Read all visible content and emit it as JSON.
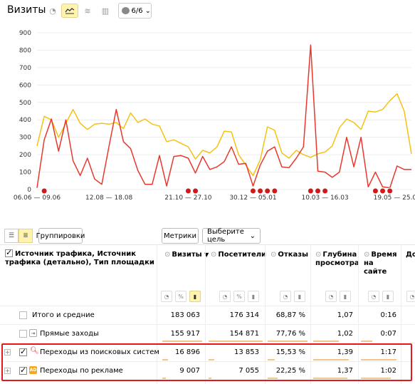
{
  "header": {
    "title": "Визиты",
    "segments_label": "6/6",
    "tools": [
      "pie-chart-icon",
      "line-chart-icon",
      "area-chart-icon",
      "bar-chart-icon"
    ]
  },
  "chart_data": {
    "type": "line",
    "ylim": [
      0,
      900
    ],
    "yticks": [
      "0",
      "100",
      "200",
      "300",
      "400",
      "500",
      "600",
      "700",
      "800",
      "900"
    ],
    "xticks": [
      "06.06 — 09.06",
      "12.08 — 18.08",
      "21.10 — 27.10",
      "30.12 — 05.01",
      "10.03 — 16.03",
      "19.05 — 25.05"
    ],
    "series": [
      {
        "color": "#f5c211",
        "values": [
          250,
          420,
          400,
          300,
          380,
          460,
          380,
          345,
          375,
          380,
          375,
          385,
          350,
          440,
          385,
          405,
          375,
          365,
          275,
          285,
          265,
          245,
          175,
          225,
          210,
          245,
          335,
          330,
          200,
          140,
          80,
          170,
          360,
          340,
          210,
          180,
          225,
          200,
          185,
          205,
          215,
          250,
          355,
          405,
          385,
          345,
          450,
          445,
          460,
          510,
          550,
          450,
          205
        ]
      },
      {
        "color": "#e8382d",
        "values": [
          10,
          285,
          405,
          220,
          400,
          165,
          80,
          180,
          60,
          30,
          250,
          460,
          275,
          235,
          110,
          30,
          30,
          195,
          20,
          190,
          195,
          180,
          95,
          190,
          115,
          130,
          160,
          245,
          145,
          150,
          20,
          140,
          220,
          245,
          130,
          125,
          180,
          245,
          830,
          105,
          100,
          70,
          100,
          300,
          130,
          300,
          15,
          100,
          15,
          10,
          135,
          115,
          115
        ]
      }
    ]
  },
  "toolbar": {
    "group_button": "Группировки",
    "metrics_button": "Метрики",
    "goal_select": "Выберите цель"
  },
  "table": {
    "dimension_header": "Источник трафика, Источник трафика (детально), Тип площадки",
    "columns": [
      "Визиты",
      "Посетители",
      "Отказы",
      "Глубина просмотра",
      "Время на сайте",
      "До"
    ],
    "rows": [
      {
        "label": "Итого и средние",
        "values": [
          "183 063",
          "176 314",
          "68,87 %",
          "1,07",
          "0:16"
        ]
      },
      {
        "label": "Прямые заходы",
        "values": [
          "155 917",
          "154 871",
          "77,76 %",
          "1,02",
          "0:07"
        ]
      },
      {
        "label": "Переходы из поисковых систем",
        "values": [
          "16 896",
          "13 853",
          "15,53 %",
          "1,39",
          "1:17"
        ]
      },
      {
        "label": "Переходы по рекламе",
        "values": [
          "9 007",
          "7 055",
          "22,25 %",
          "1,37",
          "1:02"
        ]
      }
    ],
    "ad_badge": "AD",
    "sort_indicator": "▼"
  }
}
